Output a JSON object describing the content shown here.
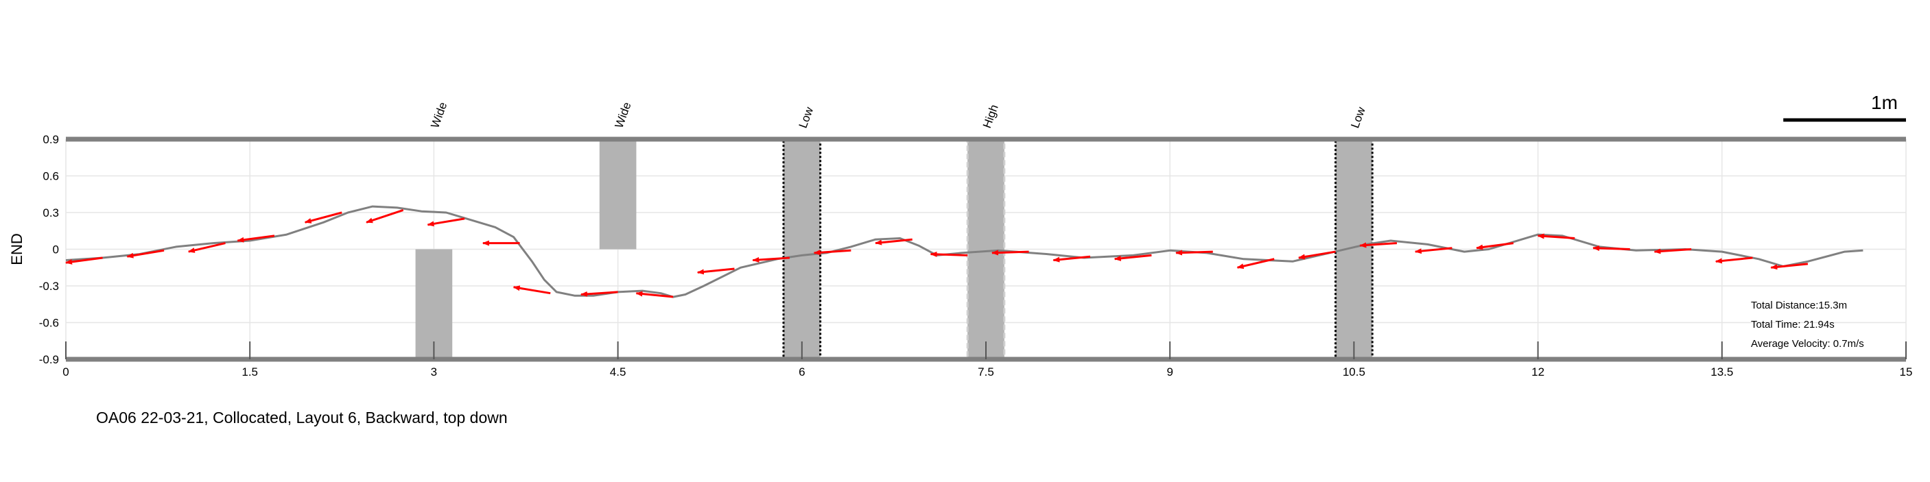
{
  "chart_data": {
    "type": "line",
    "title": "",
    "xlabel": "",
    "ylabel": "END",
    "xlim": [
      0,
      15
    ],
    "ylim": [
      -0.9,
      0.9
    ],
    "x_ticks": [
      0,
      1.5,
      3,
      4.5,
      6,
      7.5,
      9,
      10.5,
      12,
      13.5,
      15
    ],
    "x_tick_labels": [
      "0",
      "1.5",
      "3",
      "4.5",
      "6",
      "7.5",
      "9",
      "10.5",
      "12",
      "13.5",
      "15"
    ],
    "y_ticks": [
      -0.9,
      -0.6,
      -0.3,
      0,
      0.3,
      0.6,
      0.9
    ],
    "y_tick_labels": [
      "-0.9",
      "-0.6",
      "-0.3",
      "0",
      "0.3",
      "0.6",
      "0.9"
    ],
    "grid": true,
    "boundary_lines_y": [
      0.9,
      -0.9
    ],
    "path": {
      "color": "#808080",
      "x": [
        0,
        0.3,
        0.6,
        0.9,
        1.2,
        1.5,
        1.8,
        2.1,
        2.3,
        2.5,
        2.7,
        2.9,
        3.1,
        3.3,
        3.5,
        3.65,
        3.8,
        3.9,
        4.0,
        4.15,
        4.3,
        4.5,
        4.7,
        4.85,
        4.95,
        5.05,
        5.2,
        5.5,
        5.8,
        6.0,
        6.2,
        6.4,
        6.6,
        6.8,
        6.95,
        7.1,
        7.3,
        7.6,
        8.0,
        8.3,
        8.7,
        9.0,
        9.3,
        9.6,
        10.0,
        10.3,
        10.6,
        10.8,
        11.1,
        11.4,
        11.6,
        11.8,
        12.0,
        12.2,
        12.5,
        12.8,
        13.2,
        13.5,
        13.8,
        14.0,
        14.2,
        14.5,
        14.65
      ],
      "y": [
        -0.09,
        -0.07,
        -0.04,
        0.02,
        0.05,
        0.07,
        0.12,
        0.22,
        0.3,
        0.35,
        0.34,
        0.31,
        0.3,
        0.24,
        0.18,
        0.1,
        -0.1,
        -0.25,
        -0.35,
        -0.38,
        -0.38,
        -0.35,
        -0.34,
        -0.36,
        -0.39,
        -0.37,
        -0.3,
        -0.15,
        -0.08,
        -0.05,
        -0.03,
        0.02,
        0.08,
        0.09,
        0.03,
        -0.05,
        -0.03,
        -0.01,
        -0.04,
        -0.07,
        -0.05,
        -0.01,
        -0.03,
        -0.08,
        -0.1,
        -0.03,
        0.04,
        0.07,
        0.04,
        -0.02,
        0.0,
        0.06,
        0.12,
        0.11,
        0.02,
        -0.01,
        0.0,
        -0.02,
        -0.08,
        -0.14,
        -0.1,
        -0.02,
        -0.01
      ]
    },
    "velocity_arrows": {
      "color": "#ff0000",
      "points": [
        {
          "x": 0.3,
          "y": -0.07,
          "dx": -0.3,
          "dy": -0.04
        },
        {
          "x": 0.8,
          "y": -0.01,
          "dx": -0.3,
          "dy": -0.05
        },
        {
          "x": 1.3,
          "y": 0.05,
          "dx": -0.3,
          "dy": -0.07
        },
        {
          "x": 1.7,
          "y": 0.11,
          "dx": -0.3,
          "dy": -0.04
        },
        {
          "x": 2.25,
          "y": 0.3,
          "dx": -0.3,
          "dy": -0.08
        },
        {
          "x": 2.75,
          "y": 0.32,
          "dx": -0.3,
          "dy": -0.1
        },
        {
          "x": 3.25,
          "y": 0.25,
          "dx": -0.3,
          "dy": -0.05
        },
        {
          "x": 3.7,
          "y": 0.05,
          "dx": -0.3,
          "dy": 0.0
        },
        {
          "x": 3.95,
          "y": -0.36,
          "dx": -0.3,
          "dy": 0.05
        },
        {
          "x": 4.5,
          "y": -0.35,
          "dx": -0.3,
          "dy": -0.02
        },
        {
          "x": 4.95,
          "y": -0.39,
          "dx": -0.3,
          "dy": 0.03
        },
        {
          "x": 5.45,
          "y": -0.16,
          "dx": -0.3,
          "dy": -0.03
        },
        {
          "x": 5.9,
          "y": -0.07,
          "dx": -0.3,
          "dy": -0.02
        },
        {
          "x": 6.4,
          "y": -0.01,
          "dx": -0.3,
          "dy": -0.02
        },
        {
          "x": 6.9,
          "y": 0.08,
          "dx": -0.3,
          "dy": -0.03
        },
        {
          "x": 7.35,
          "y": -0.05,
          "dx": -0.3,
          "dy": 0.01
        },
        {
          "x": 7.85,
          "y": -0.02,
          "dx": -0.3,
          "dy": -0.01
        },
        {
          "x": 8.35,
          "y": -0.06,
          "dx": -0.3,
          "dy": -0.03
        },
        {
          "x": 8.85,
          "y": -0.05,
          "dx": -0.3,
          "dy": -0.03
        },
        {
          "x": 9.35,
          "y": -0.02,
          "dx": -0.3,
          "dy": -0.01
        },
        {
          "x": 9.85,
          "y": -0.08,
          "dx": -0.3,
          "dy": -0.07
        },
        {
          "x": 10.35,
          "y": -0.02,
          "dx": -0.3,
          "dy": -0.05
        },
        {
          "x": 10.85,
          "y": 0.05,
          "dx": -0.3,
          "dy": -0.02
        },
        {
          "x": 11.3,
          "y": 0.01,
          "dx": -0.3,
          "dy": -0.03
        },
        {
          "x": 11.8,
          "y": 0.05,
          "dx": -0.3,
          "dy": -0.04
        },
        {
          "x": 12.3,
          "y": 0.09,
          "dx": -0.3,
          "dy": 0.02
        },
        {
          "x": 12.75,
          "y": -0.0,
          "dx": -0.3,
          "dy": 0.01
        },
        {
          "x": 13.25,
          "y": -0.0,
          "dx": -0.3,
          "dy": -0.02
        },
        {
          "x": 13.75,
          "y": -0.07,
          "dx": -0.3,
          "dy": -0.03
        },
        {
          "x": 14.2,
          "y": -0.12,
          "dx": -0.3,
          "dy": -0.03
        }
      ]
    },
    "obstacles": [
      {
        "label": "Wide",
        "x0": 2.85,
        "x1": 3.15,
        "y0": -0.9,
        "y1": 0.0,
        "border": "none"
      },
      {
        "label": "Wide",
        "x0": 4.35,
        "x1": 4.65,
        "y0": 0.0,
        "y1": 0.9,
        "border": "none"
      },
      {
        "label": "Low",
        "x0": 5.85,
        "x1": 6.15,
        "y0": -0.9,
        "y1": 0.9,
        "border": "dotted-black"
      },
      {
        "label": "High",
        "x0": 7.35,
        "x1": 7.65,
        "y0": -0.9,
        "y1": 0.9,
        "border": "dashed-gray"
      },
      {
        "label": "Low",
        "x0": 10.35,
        "x1": 10.65,
        "y0": -0.9,
        "y1": 0.9,
        "border": "dotted-black"
      }
    ],
    "scale_bar": {
      "label": "1m",
      "length": 1
    }
  },
  "caption": "OA06 22-03-21, Collocated, Layout 6, Backward, top down",
  "stats": {
    "distance": "Total Distance:15.3m",
    "time": "Total Time: 21.94s",
    "velocity": "Average Velocity: 0.7m/s"
  },
  "colors": {
    "path": "#808080",
    "arrow": "#ff0000",
    "obstacle_fill": "#b3b3b3",
    "boundary": "#808080",
    "grid": "#e6e6e6"
  }
}
